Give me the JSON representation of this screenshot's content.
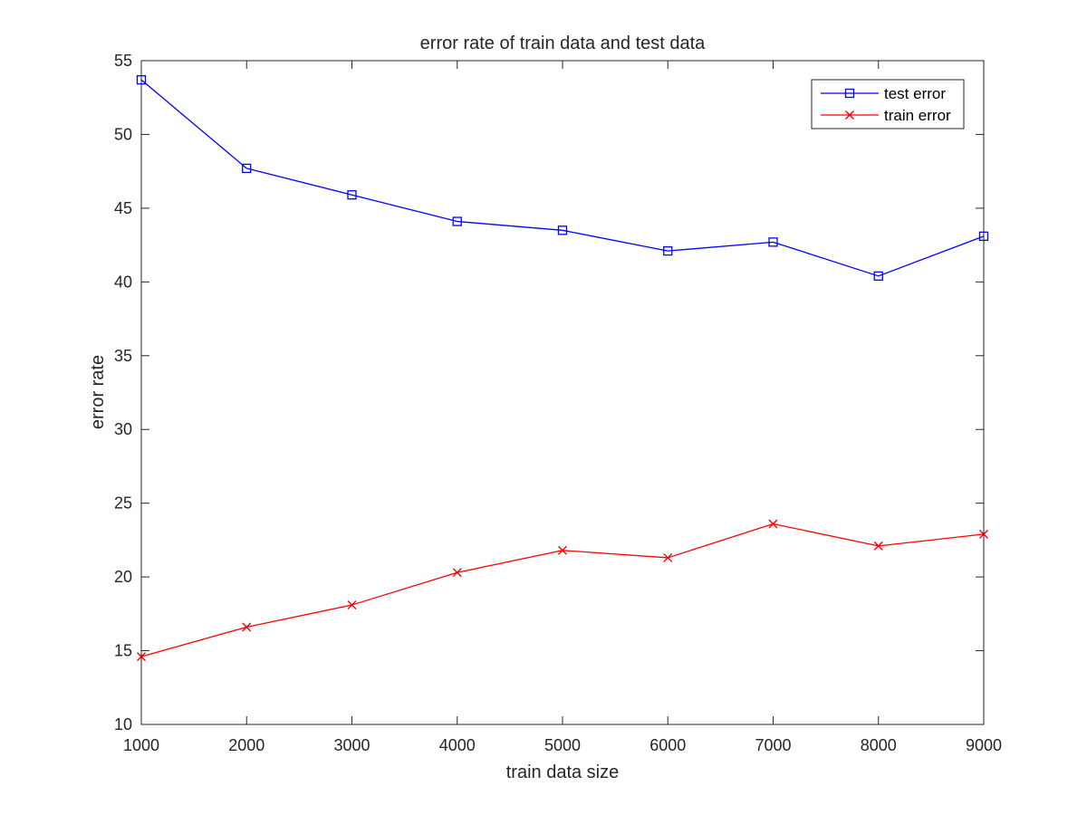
{
  "chart_data": {
    "type": "line",
    "title": "error rate of train data and test data",
    "xlabel": "train data size",
    "ylabel": "error rate",
    "x": [
      1000,
      2000,
      3000,
      4000,
      5000,
      6000,
      7000,
      8000,
      9000
    ],
    "xlim": [
      1000,
      9000
    ],
    "ylim": [
      10,
      55
    ],
    "xticks": [
      1000,
      2000,
      3000,
      4000,
      5000,
      6000,
      7000,
      8000,
      9000
    ],
    "yticks": [
      10,
      15,
      20,
      25,
      30,
      35,
      40,
      45,
      50,
      55
    ],
    "grid": false,
    "legend_position": "top-right",
    "series": [
      {
        "name": "test error",
        "color": "#0000ff",
        "marker": "square",
        "values": [
          53.7,
          47.7,
          45.9,
          44.1,
          43.5,
          42.1,
          42.7,
          40.4,
          43.1
        ]
      },
      {
        "name": "train error",
        "color": "#ff0000",
        "marker": "x",
        "values": [
          14.6,
          16.6,
          18.1,
          20.3,
          21.8,
          21.3,
          23.6,
          22.1,
          22.9
        ]
      }
    ]
  }
}
